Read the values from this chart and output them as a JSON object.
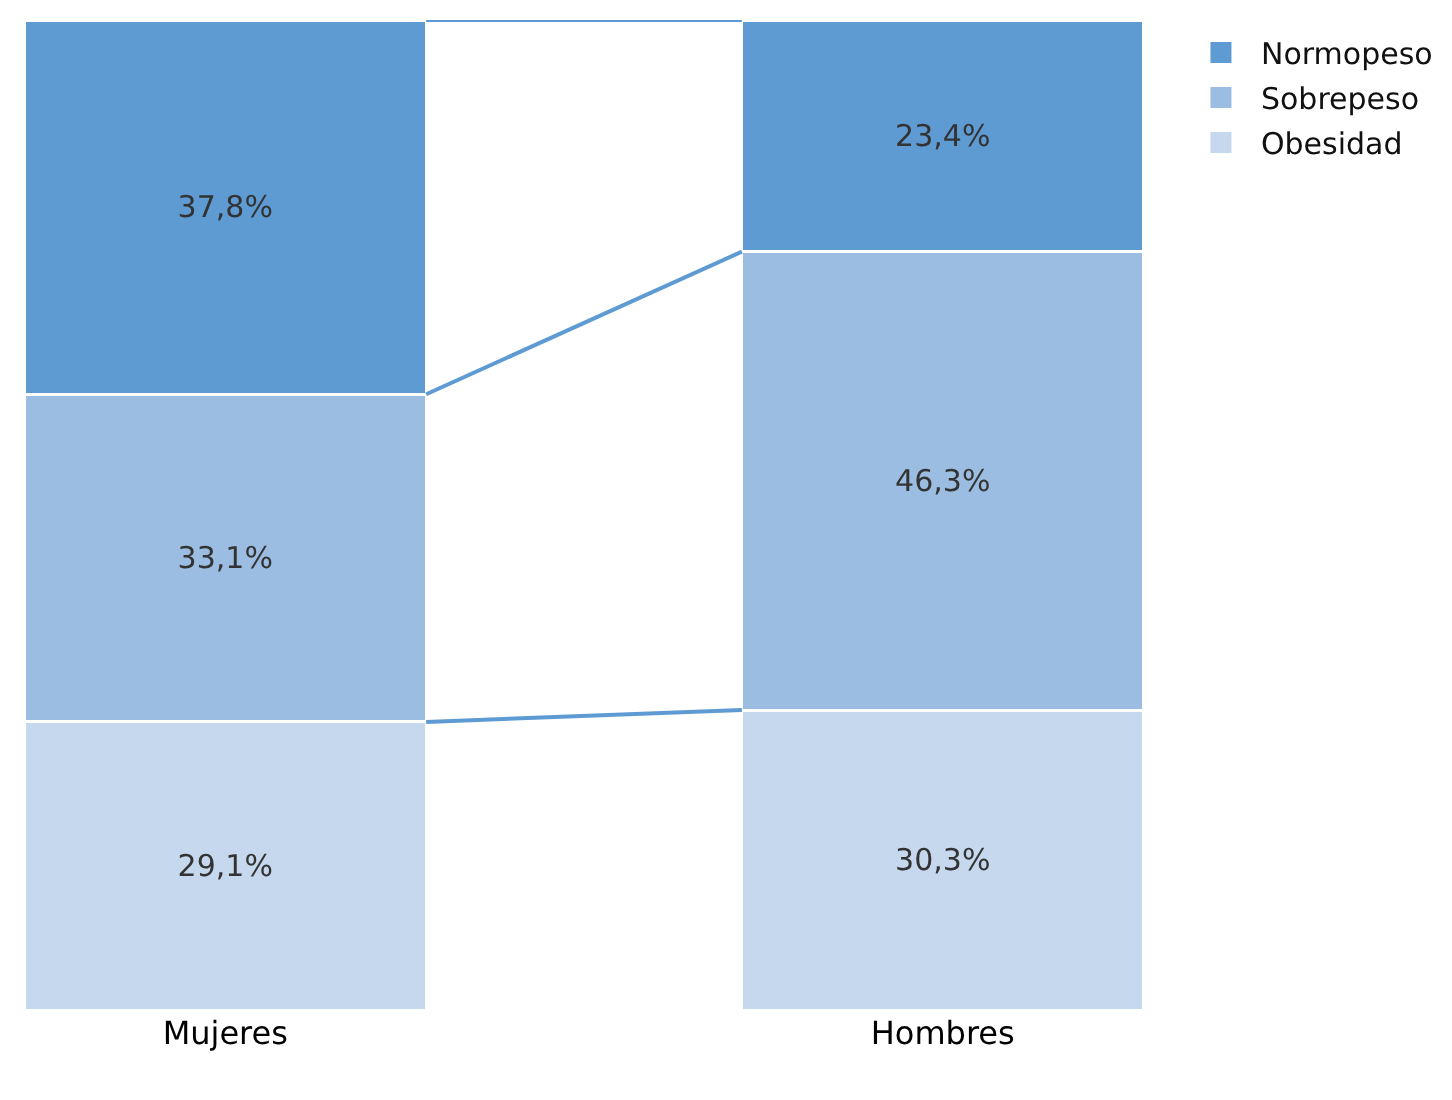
{
  "chart_data": {
    "type": "bar",
    "stacked": true,
    "categories": [
      "Mujeres",
      "Hombres"
    ],
    "series": [
      {
        "name": "Obesidad",
        "color": "#c5d8ee",
        "values": [
          29.1,
          30.3
        ],
        "value_labels": [
          "29,1%",
          "30,3%"
        ]
      },
      {
        "name": "Sobrepeso",
        "color": "#9cbde2",
        "values": [
          33.1,
          46.3
        ],
        "value_labels": [
          "33,1%",
          "46,3%"
        ]
      },
      {
        "name": "Normopeso",
        "color": "#5e9bd3",
        "values": [
          37.8,
          23.4
        ],
        "value_labels": [
          "37,8%",
          "23,4%"
        ]
      }
    ],
    "ylim": [
      0,
      100
    ],
    "tick_labels": "x",
    "legend": "top right"
  }
}
